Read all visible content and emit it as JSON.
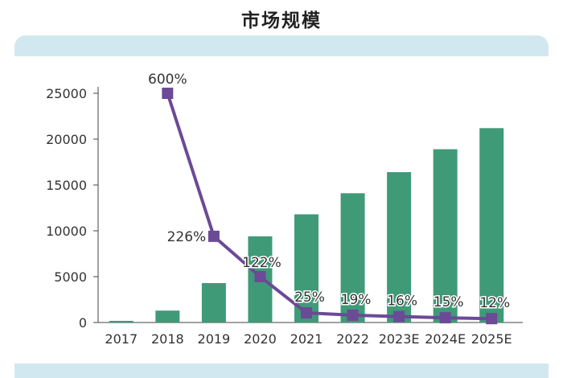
{
  "title": "市场规模",
  "colors": {
    "bar": "#3f9a78",
    "line": "#6b4a96",
    "axis": "#444444",
    "panel": "#d2e8f0"
  },
  "chart_data": {
    "type": "bar",
    "title": "市场规模",
    "categories": [
      "2017",
      "2018",
      "2019",
      "2020",
      "2021",
      "2022",
      "2023E",
      "2024E",
      "2025E"
    ],
    "ylim": [
      0,
      25000
    ],
    "yticks": [
      0,
      5000,
      10000,
      15000,
      20000,
      25000
    ],
    "ytick_labels": [
      "0",
      "5000",
      "10000",
      "15000",
      "20000",
      "25000"
    ],
    "grid": false,
    "series": [
      {
        "type": "bar",
        "values": [
          180,
          1300,
          4300,
          9400,
          11800,
          14100,
          16400,
          18900,
          21200
        ]
      },
      {
        "type": "line",
        "values": [
          null,
          25000,
          9400,
          5000,
          1050,
          800,
          650,
          520,
          420
        ],
        "labels": [
          "",
          "600%",
          "226%",
          "122%",
          "25%",
          "19%",
          "16%",
          "15%",
          "12%"
        ]
      }
    ]
  }
}
